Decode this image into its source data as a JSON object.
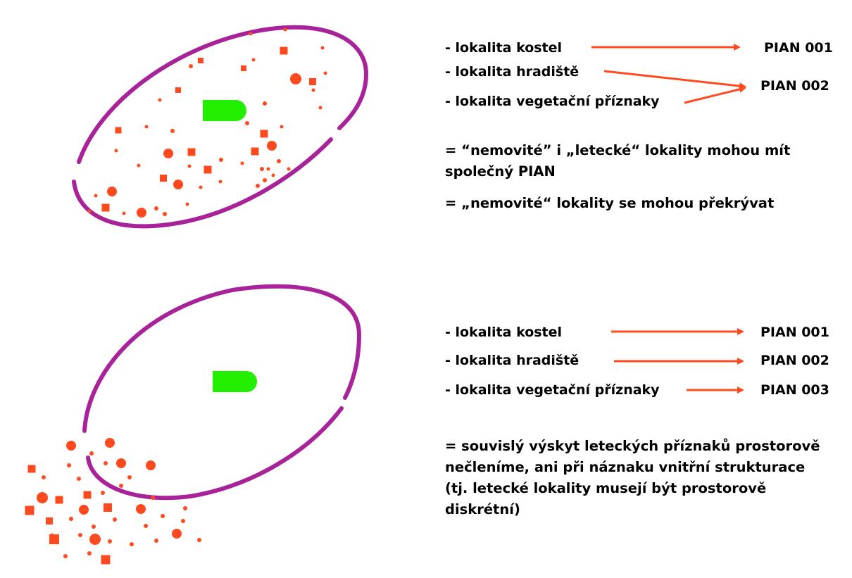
{
  "colors": {
    "ellipse": "#a8239a",
    "features": "#ff4a1f",
    "church": "#22ee00",
    "arrows": "#ff4a1f"
  },
  "panel_top": {
    "labels": [
      "- lokalita kostel",
      "- lokalita hradiště",
      "- lokalita vegetační příznaky"
    ],
    "pians": [
      "PIAN 001",
      "PIAN 002"
    ],
    "notes": [
      "= “nemovité” i „letecké“ lokality mohou mít",
      "společný PIAN",
      "= „nemovité“ lokality se mohou překrývat"
    ]
  },
  "panel_bottom": {
    "labels": [
      "- lokalita kostel",
      "- lokalita hradiště",
      "- lokalita vegetační příznaky"
    ],
    "pians": [
      "PIAN 001",
      "PIAN 002",
      "PIAN 003"
    ],
    "notes": [
      "= souvislý výskyt leteckých příznaků prostorově",
      "nečleníme, ani při náznaku vnitřní strukturace",
      "(tj. letecké lokality musejí být prostorově",
      "diskrétní)"
    ]
  }
}
